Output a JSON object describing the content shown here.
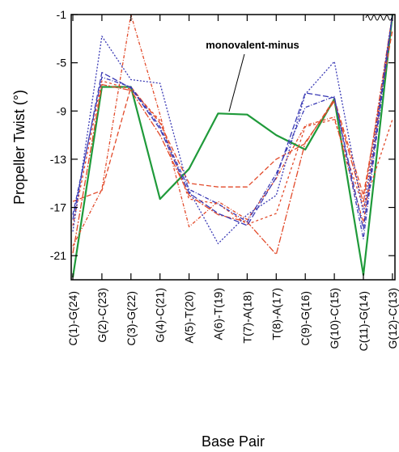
{
  "chart_data": {
    "type": "line",
    "title": "",
    "xlabel": "Base Pair",
    "ylabel": "Propeller Twist (°)",
    "ylim": [
      -23,
      -1
    ],
    "yticks": [
      -1,
      -5,
      -9,
      -13,
      -17,
      -21
    ],
    "grid": false,
    "categories": [
      "C(1)-G(24)",
      "G(2)-C(23)",
      "C(3)-G(22)",
      "G(4)-C(21)",
      "A(5)-T(20)",
      "A(6)-T(19)",
      "T(7)-A(18)",
      "T(8)-A(17)",
      "C(9)-G(16)",
      "G(10)-C(15)",
      "C(11)-G(14)",
      "G(12)-C(13)"
    ],
    "annotation": "monovalent-minus",
    "series": [
      {
        "color": "#1f9a3a",
        "dash": "solid",
        "width": 2.2,
        "values": [
          -22.8,
          -7.0,
          -7.0,
          -16.3,
          -13.8,
          -9.2,
          -9.3,
          -11.0,
          -12.2,
          -8.0,
          -22.6,
          -1.0
        ]
      },
      {
        "color": "#e24a2a",
        "dash": "4,2,1,2",
        "width": 1.3,
        "values": [
          -20.2,
          -15.5,
          -1.0,
          -9.3,
          -18.6,
          -16.5,
          -18.0,
          -14.6,
          -10.2,
          -9.5,
          -18.3,
          -1.0
        ]
      },
      {
        "color": "#e24a2a",
        "dash": "6,3",
        "width": 1.3,
        "values": [
          -16.5,
          -15.6,
          -7.0,
          -10.0,
          -15.0,
          -15.3,
          -15.3,
          -13.0,
          -11.7,
          -8.0,
          -16.0,
          -2.3
        ]
      },
      {
        "color": "#e24a2a",
        "dash": "3,3",
        "width": 1.3,
        "values": [
          -18.5,
          -6.5,
          -7.2,
          -9.8,
          -16.3,
          -16.7,
          -18.4,
          -17.5,
          -10.3,
          -9.7,
          -17.0,
          -9.7
        ]
      },
      {
        "color": "#e24a2a",
        "dash": "8,2,2,2",
        "width": 1.3,
        "values": [
          -20.8,
          -6.8,
          -7.3,
          -11.0,
          -16.0,
          -17.6,
          -18.2,
          -20.9,
          -11.6,
          -8.2,
          -16.6,
          -1.0
        ]
      },
      {
        "color": "#3a3ab5",
        "dash": "2,2",
        "width": 1.3,
        "values": [
          -19.0,
          -2.8,
          -6.4,
          -6.7,
          -15.6,
          -20.0,
          -17.6,
          -16.0,
          -7.6,
          -4.9,
          -17.5,
          -1.0
        ]
      },
      {
        "color": "#3a3ab5",
        "dash": "7,3",
        "width": 1.3,
        "values": [
          -18.0,
          -5.8,
          -7.1,
          -10.5,
          -15.8,
          -17.5,
          -18.5,
          -14.5,
          -7.5,
          -7.9,
          -18.8,
          -1.0
        ]
      },
      {
        "color": "#3a3ab5",
        "dash": "5,2,1,2",
        "width": 1.3,
        "values": [
          -17.6,
          -6.2,
          -7.0,
          -10.3,
          -15.5,
          -16.7,
          -18.2,
          -14.2,
          -8.7,
          -7.8,
          -19.6,
          -1.0
        ]
      }
    ]
  }
}
